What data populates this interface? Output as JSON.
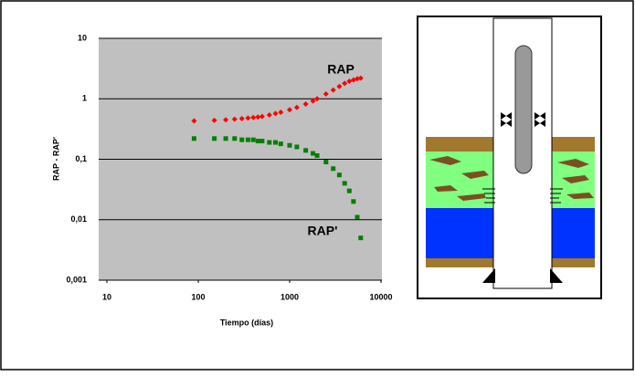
{
  "chart_data": {
    "type": "scatter",
    "log_x": true,
    "log_y": true,
    "grid": true,
    "x_label": "Tiempo (días)",
    "y_label": "RAP - RAP'",
    "xlim": [
      10,
      10000
    ],
    "ylim": [
      0.001,
      10
    ],
    "xticks": [
      10,
      100,
      1000,
      10000
    ],
    "yticks": [
      {
        "value": 0.001,
        "label": "0,001"
      },
      {
        "value": 0.01,
        "label": "0,01"
      },
      {
        "value": 0.1,
        "label": "0,1"
      },
      1,
      10
    ],
    "x": [
      90,
      150,
      200,
      250,
      300,
      350,
      400,
      450,
      500,
      600,
      700,
      800,
      1000,
      1200,
      1500,
      1800,
      2000,
      2500,
      3000,
      3500,
      4000,
      4500,
      5000,
      5500,
      6000
    ],
    "series": [
      {
        "name": "RAP",
        "color": "#ff0000",
        "marker": "diamond",
        "values": [
          0.43,
          0.44,
          0.45,
          0.46,
          0.47,
          0.48,
          0.49,
          0.5,
          0.51,
          0.54,
          0.57,
          0.6,
          0.66,
          0.72,
          0.82,
          0.92,
          1.0,
          1.2,
          1.4,
          1.6,
          1.8,
          1.95,
          2.05,
          2.15,
          2.2
        ]
      },
      {
        "name": "RAP'",
        "color": "#008000",
        "marker": "square",
        "values": [
          0.22,
          0.22,
          0.22,
          0.22,
          0.21,
          0.21,
          0.21,
          0.2,
          0.2,
          0.19,
          0.19,
          0.18,
          0.17,
          0.16,
          0.14,
          0.125,
          0.115,
          0.09,
          0.07,
          0.055,
          0.04,
          0.03,
          0.02,
          0.011,
          0.005
        ]
      }
    ]
  }
}
